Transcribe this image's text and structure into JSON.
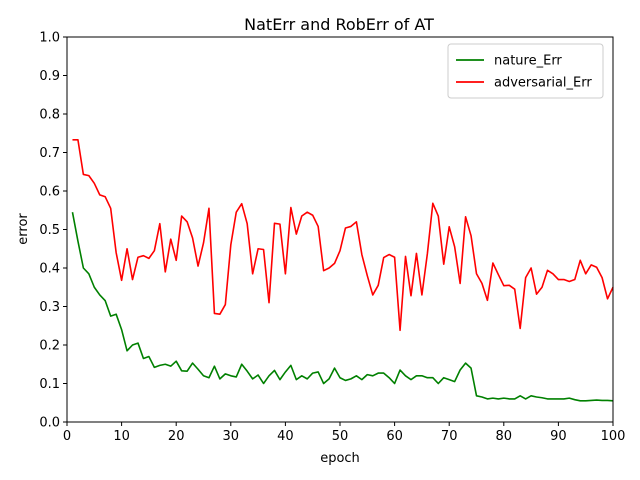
{
  "chart_data": {
    "type": "line",
    "title": "NatErr and RobErr of AT",
    "xlabel": "epoch",
    "ylabel": "error",
    "xlim": [
      0,
      100
    ],
    "ylim": [
      0,
      1
    ],
    "xticks": [
      "0",
      "10",
      "20",
      "30",
      "40",
      "50",
      "60",
      "70",
      "80",
      "90",
      "100"
    ],
    "yticks": [
      "0.0",
      "0.1",
      "0.2",
      "0.3",
      "0.4",
      "0.5",
      "0.6",
      "0.7",
      "0.8",
      "0.9",
      "1.0"
    ],
    "grid": false,
    "legend_position": "top-right",
    "x": [
      1,
      2,
      3,
      4,
      5,
      6,
      7,
      8,
      9,
      10,
      11,
      12,
      13,
      14,
      15,
      16,
      17,
      18,
      19,
      20,
      21,
      22,
      23,
      24,
      25,
      26,
      27,
      28,
      29,
      30,
      31,
      32,
      33,
      34,
      35,
      36,
      37,
      38,
      39,
      40,
      41,
      42,
      43,
      44,
      45,
      46,
      47,
      48,
      49,
      50,
      51,
      52,
      53,
      54,
      55,
      56,
      57,
      58,
      59,
      60,
      61,
      62,
      63,
      64,
      65,
      66,
      67,
      68,
      69,
      70,
      71,
      72,
      73,
      74,
      75,
      76,
      77,
      78,
      79,
      80,
      81,
      82,
      83,
      84,
      85,
      86,
      87,
      88,
      89,
      90,
      91,
      92,
      93,
      94,
      95,
      96,
      97,
      98,
      99,
      100
    ],
    "series": [
      {
        "name": "nature_Err",
        "color": "#008000",
        "values": [
          0.545,
          0.47,
          0.4,
          0.385,
          0.35,
          0.33,
          0.315,
          0.275,
          0.28,
          0.24,
          0.185,
          0.2,
          0.205,
          0.165,
          0.17,
          0.142,
          0.147,
          0.15,
          0.145,
          0.158,
          0.133,
          0.132,
          0.153,
          0.137,
          0.12,
          0.115,
          0.145,
          0.112,
          0.125,
          0.12,
          0.117,
          0.15,
          0.132,
          0.112,
          0.122,
          0.1,
          0.12,
          0.134,
          0.11,
          0.13,
          0.147,
          0.11,
          0.12,
          0.112,
          0.127,
          0.13,
          0.1,
          0.112,
          0.14,
          0.115,
          0.108,
          0.112,
          0.12,
          0.11,
          0.123,
          0.12,
          0.127,
          0.127,
          0.115,
          0.1,
          0.135,
          0.12,
          0.11,
          0.12,
          0.12,
          0.115,
          0.115,
          0.1,
          0.115,
          0.11,
          0.105,
          0.135,
          0.153,
          0.14,
          0.068,
          0.065,
          0.06,
          0.062,
          0.06,
          0.062,
          0.06,
          0.06,
          0.068,
          0.06,
          0.068,
          0.065,
          0.063,
          0.06,
          0.06,
          0.06,
          0.06,
          0.062,
          0.058,
          0.055,
          0.055,
          0.056,
          0.057,
          0.056,
          0.056,
          0.055
        ]
      },
      {
        "name": "adversarial_Err",
        "color": "#ff0000",
        "values": [
          0.733,
          0.733,
          0.643,
          0.64,
          0.62,
          0.59,
          0.585,
          0.555,
          0.44,
          0.368,
          0.45,
          0.37,
          0.428,
          0.432,
          0.425,
          0.445,
          0.515,
          0.39,
          0.475,
          0.42,
          0.535,
          0.52,
          0.478,
          0.405,
          0.465,
          0.555,
          0.282,
          0.28,
          0.305,
          0.46,
          0.545,
          0.567,
          0.515,
          0.385,
          0.45,
          0.448,
          0.31,
          0.516,
          0.514,
          0.385,
          0.557,
          0.488,
          0.535,
          0.545,
          0.537,
          0.508,
          0.393,
          0.4,
          0.412,
          0.445,
          0.504,
          0.508,
          0.52,
          0.435,
          0.38,
          0.33,
          0.355,
          0.427,
          0.435,
          0.428,
          0.238,
          0.43,
          0.328,
          0.438,
          0.33,
          0.437,
          0.568,
          0.535,
          0.41,
          0.507,
          0.455,
          0.36,
          0.533,
          0.484,
          0.385,
          0.36,
          0.316,
          0.413,
          0.383,
          0.354,
          0.355,
          0.345,
          0.243,
          0.375,
          0.4,
          0.332,
          0.35,
          0.394,
          0.385,
          0.37,
          0.37,
          0.365,
          0.37,
          0.42,
          0.385,
          0.408,
          0.402,
          0.375,
          0.32,
          0.35
        ]
      }
    ]
  }
}
